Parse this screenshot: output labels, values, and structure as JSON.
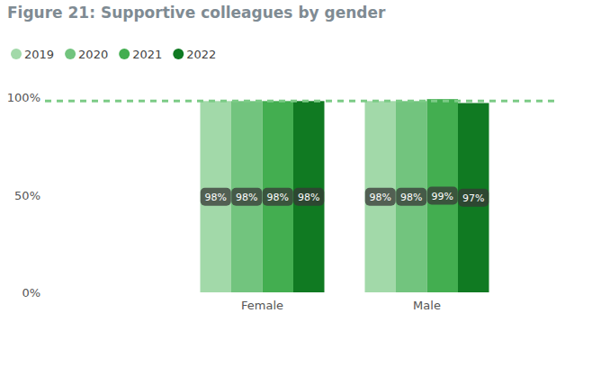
{
  "chart_data": {
    "type": "bar",
    "title": "Figure 21: Supportive colleagues by gender",
    "categories": [
      "Female",
      "Male"
    ],
    "series": [
      {
        "name": "2019",
        "color": "#a2d9a9",
        "values": [
          98,
          98
        ],
        "value_labels": [
          "98%",
          "98%"
        ]
      },
      {
        "name": "2020",
        "color": "#72c47e",
        "values": [
          98,
          98
        ],
        "value_labels": [
          "98%",
          "98%"
        ]
      },
      {
        "name": "2021",
        "color": "#43ae50",
        "values": [
          98,
          99
        ],
        "value_labels": [
          "98%",
          "99%"
        ]
      },
      {
        "name": "2022",
        "color": "#107a22",
        "values": [
          98,
          97
        ],
        "value_labels": [
          "98%",
          "97%"
        ]
      }
    ],
    "ylim": [
      0,
      100
    ],
    "yticks": [
      {
        "value": 0,
        "label": "0%"
      },
      {
        "value": 50,
        "label": "50%"
      },
      {
        "value": 100,
        "label": "100%"
      }
    ],
    "reference_line": 98,
    "grid": false,
    "legend": "top-left",
    "data_labels": true
  }
}
